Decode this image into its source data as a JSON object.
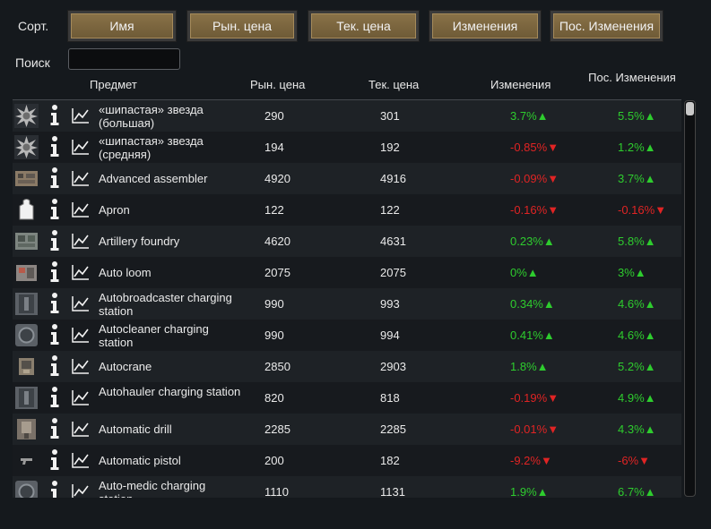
{
  "sort": {
    "label": "Сорт.",
    "buttons": [
      "Имя",
      "Рын. цена",
      "Тек. цена",
      "Изменения",
      "Пос. Изменения"
    ]
  },
  "search": {
    "label": "Поиск",
    "value": "",
    "placeholder": ""
  },
  "columns": {
    "item": "Предмет",
    "market_price": "Рын. цена",
    "current_price": "Тек. цена",
    "changes": "Изменения",
    "last_changes": "Пос. Изменения"
  },
  "rows": [
    {
      "name": "«шипастая» звезда (большая)",
      "market": "290",
      "current": "301",
      "change": "3.7%",
      "change_dir": "up",
      "last": "5.5%",
      "last_dir": "up",
      "icon": "spike-star-icon"
    },
    {
      "name": "«шипастая» звезда (средняя)",
      "market": "194",
      "current": "192",
      "change": "-0.85%",
      "change_dir": "down",
      "last": "1.2%",
      "last_dir": "up",
      "icon": "spike-star-icon"
    },
    {
      "name": "Advanced assembler",
      "market": "4920",
      "current": "4916",
      "change": "-0.09%",
      "change_dir": "down",
      "last": "3.7%",
      "last_dir": "up",
      "icon": "assembler-icon"
    },
    {
      "name": "Apron",
      "market": "122",
      "current": "122",
      "change": "-0.16%",
      "change_dir": "down",
      "last": "-0.16%",
      "last_dir": "down",
      "icon": "apron-icon"
    },
    {
      "name": "Artillery foundry",
      "market": "4620",
      "current": "4631",
      "change": "0.23%",
      "change_dir": "up",
      "last": "5.8%",
      "last_dir": "up",
      "icon": "foundry-icon"
    },
    {
      "name": "Auto loom",
      "market": "2075",
      "current": "2075",
      "change": "0%",
      "change_dir": "up",
      "last": "3%",
      "last_dir": "up",
      "icon": "loom-icon"
    },
    {
      "name": "Autobroadcaster charging station",
      "market": "990",
      "current": "993",
      "change": "0.34%",
      "change_dir": "up",
      "last": "4.6%",
      "last_dir": "up",
      "icon": "charging-station-icon"
    },
    {
      "name": "Autocleaner charging station",
      "market": "990",
      "current": "994",
      "change": "0.41%",
      "change_dir": "up",
      "last": "4.6%",
      "last_dir": "up",
      "icon": "cleaner-station-icon"
    },
    {
      "name": "Autocrane",
      "market": "2850",
      "current": "2903",
      "change": "1.8%",
      "change_dir": "up",
      "last": "5.2%",
      "last_dir": "up",
      "icon": "crane-icon"
    },
    {
      "name": "Autohauler charging station",
      "market": "820",
      "current": "818",
      "change": "-0.19%",
      "change_dir": "down",
      "last": "4.9%",
      "last_dir": "up",
      "icon": "charging-station-icon"
    },
    {
      "name": "Automatic drill",
      "market": "2285",
      "current": "2285",
      "change": "-0.01%",
      "change_dir": "down",
      "last": "4.3%",
      "last_dir": "up",
      "icon": "drill-icon"
    },
    {
      "name": "Automatic pistol",
      "market": "200",
      "current": "182",
      "change": "-9.2%",
      "change_dir": "down",
      "last": "-6%",
      "last_dir": "down",
      "icon": "pistol-icon"
    },
    {
      "name": "Auto-medic charging station",
      "market": "1110",
      "current": "1131",
      "change": "1.9%",
      "change_dir": "up",
      "last": "6.7%",
      "last_dir": "up",
      "icon": "medic-station-icon"
    }
  ],
  "colors": {
    "up": "#2ecc2e",
    "down": "#e02424",
    "button": "#7d6640"
  },
  "arrows": {
    "up": "▲",
    "down": "▼"
  }
}
